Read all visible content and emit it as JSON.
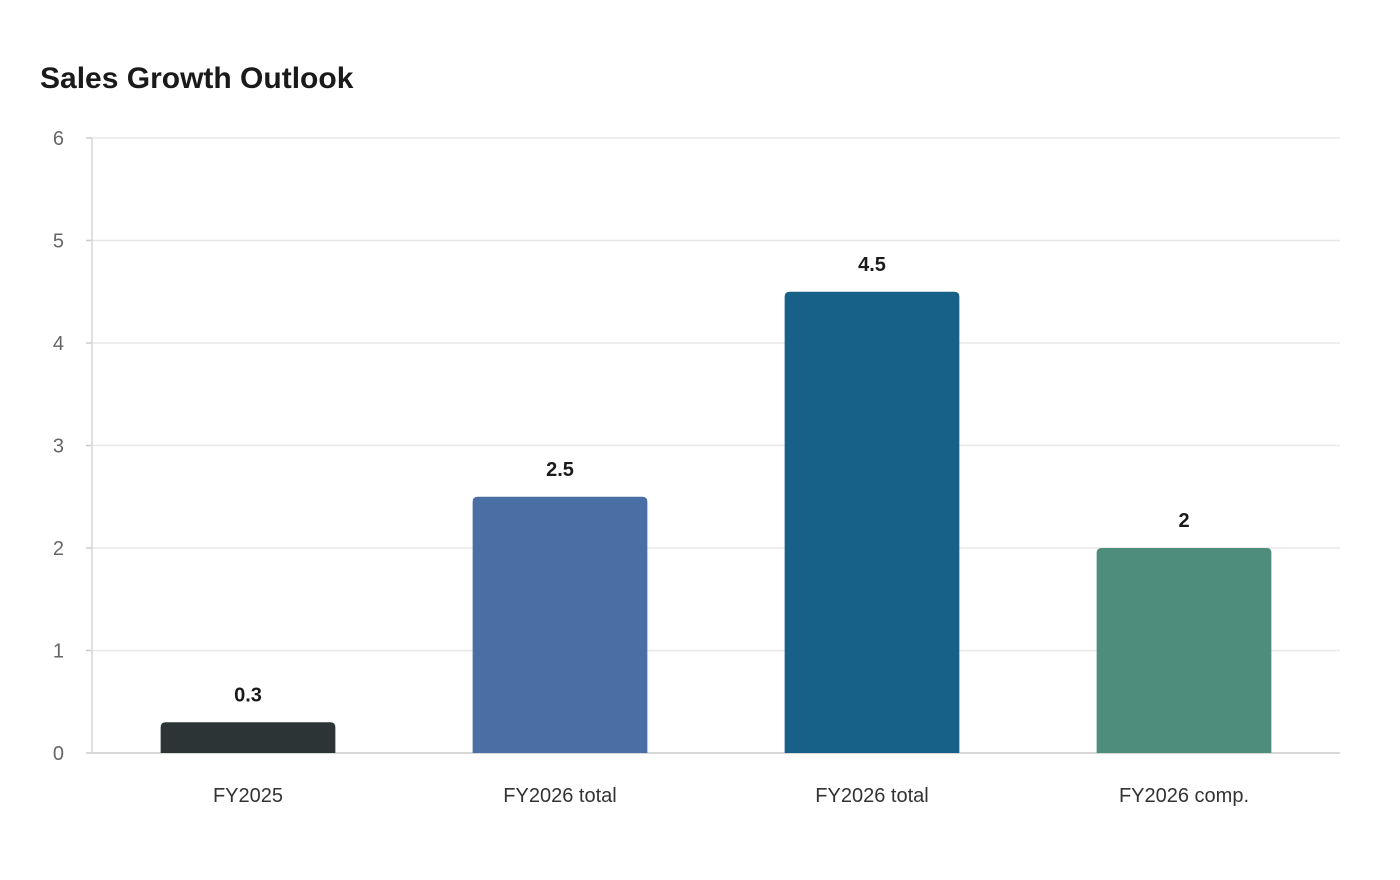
{
  "chart_data": {
    "type": "bar",
    "title": "Sales Growth Outlook",
    "xlabel": "",
    "ylabel": "",
    "categories": [
      "FY2025",
      "FY2026 total",
      "FY2026 total",
      "FY2026 comp."
    ],
    "values": [
      0.3,
      2.5,
      4.5,
      2
    ],
    "value_labels": [
      "0.3",
      "2.5",
      "4.5",
      "2"
    ],
    "colors": [
      "#2d3436",
      "#4a6fa5",
      "#176087",
      "#4e8d7c"
    ],
    "ylim": [
      0,
      6
    ],
    "yticks": [
      0,
      1,
      2,
      3,
      4,
      5,
      6
    ],
    "grid": true,
    "legend": "none"
  }
}
